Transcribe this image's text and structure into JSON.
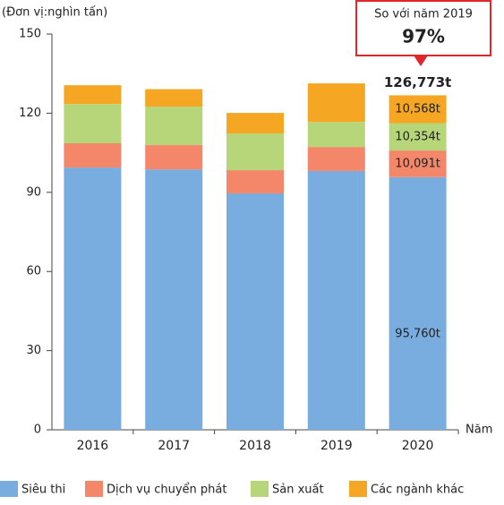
{
  "chart_data": {
    "type": "stacked_bar",
    "y_axis_label": "(Đơn vị:nghìn tấn)",
    "x_axis_label": "Năm",
    "categories": [
      "2016",
      "2017",
      "2018",
      "2019",
      "2020"
    ],
    "series": [
      {
        "name": "Siêu thi",
        "color": "#7aaddf",
        "values": [
          99.4,
          98.7,
          89.6,
          98.1,
          95.76
        ],
        "value_labels": [
          null,
          null,
          null,
          null,
          "95,760t"
        ]
      },
      {
        "name": "Dịch vụ chuyển phát",
        "color": "#f4876a",
        "values": [
          9.2,
          9.2,
          8.8,
          9.1,
          10.091
        ],
        "value_labels": [
          null,
          null,
          null,
          null,
          "10,091t"
        ]
      },
      {
        "name": "Sản xuất",
        "color": "#b7d67a",
        "values": [
          14.9,
          14.6,
          13.9,
          9.5,
          10.354
        ],
        "value_labels": [
          null,
          null,
          null,
          null,
          "10,354t"
        ]
      },
      {
        "name": "Các ngành khác",
        "color": "#f5a623",
        "values": [
          7.1,
          6.6,
          7.8,
          14.6,
          10.568
        ],
        "value_labels": [
          null,
          null,
          null,
          null,
          "10,568t"
        ]
      }
    ],
    "total_label": "126,773t",
    "callout": {
      "text": "So với năm 2019",
      "value": "97%"
    },
    "ylim": [
      0,
      150
    ],
    "yticks": [
      0,
      30,
      60,
      90,
      120,
      150
    ]
  }
}
